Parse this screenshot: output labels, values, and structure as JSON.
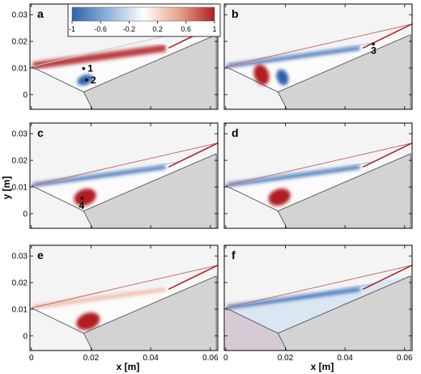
{
  "figure": {
    "ylabel": "y [m]",
    "xlabel": "x [m]",
    "x_ticks": [
      "0",
      "0.02",
      "0.04",
      "0.06"
    ],
    "y_ticks": [
      "0",
      "0.01",
      "0.02",
      "0.03"
    ],
    "colorbar": {
      "tick_labels": [
        "-1",
        "-0.6",
        "-0.2",
        "0.2",
        "0.6",
        "1"
      ],
      "range": [
        -1,
        1
      ],
      "colormap": "blue-white-red",
      "low_color": "#2f62ad",
      "high_color": "#b01e22"
    },
    "panels": [
      {
        "label": "a",
        "markers": [
          "1",
          "2"
        ]
      },
      {
        "label": "b",
        "markers": [
          "3"
        ]
      },
      {
        "label": "c",
        "markers": []
      },
      {
        "label": "d",
        "markers": []
      },
      {
        "label": "e",
        "markers": []
      },
      {
        "label": "f",
        "markers": []
      }
    ],
    "panel_c_marker": "4"
  }
}
